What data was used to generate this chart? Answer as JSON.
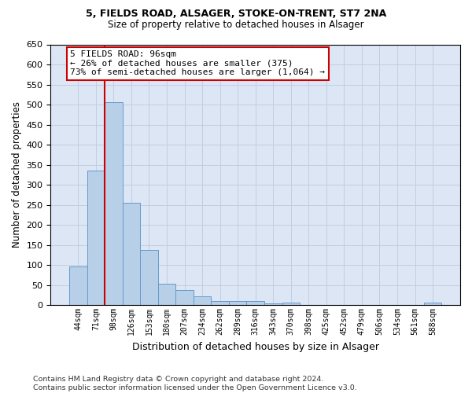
{
  "title_line1": "5, FIELDS ROAD, ALSAGER, STOKE-ON-TRENT, ST7 2NA",
  "title_line2": "Size of property relative to detached houses in Alsager",
  "xlabel": "Distribution of detached houses by size in Alsager",
  "ylabel": "Number of detached properties",
  "categories": [
    "44sqm",
    "71sqm",
    "98sqm",
    "126sqm",
    "153sqm",
    "180sqm",
    "207sqm",
    "234sqm",
    "262sqm",
    "289sqm",
    "316sqm",
    "343sqm",
    "370sqm",
    "398sqm",
    "425sqm",
    "452sqm",
    "479sqm",
    "506sqm",
    "534sqm",
    "561sqm",
    "588sqm"
  ],
  "values": [
    97,
    335,
    505,
    255,
    138,
    54,
    37,
    21,
    10,
    11,
    11,
    5,
    7,
    0,
    0,
    0,
    0,
    0,
    0,
    0,
    6
  ],
  "bar_color": "#b8cfe8",
  "bar_edge_color": "#6699cc",
  "vline_x": 1.5,
  "vline_color": "#cc0000",
  "ylim": [
    0,
    650
  ],
  "yticks": [
    0,
    50,
    100,
    150,
    200,
    250,
    300,
    350,
    400,
    450,
    500,
    550,
    600,
    650
  ],
  "annotation_text": "5 FIELDS ROAD: 96sqm\n← 26% of detached houses are smaller (375)\n73% of semi-detached houses are larger (1,064) →",
  "annotation_box_facecolor": "#ffffff",
  "annotation_box_edgecolor": "#cc0000",
  "footnote": "Contains HM Land Registry data © Crown copyright and database right 2024.\nContains public sector information licensed under the Open Government Licence v3.0.",
  "bg_color": "#ffffff",
  "plot_bg_color": "#dce6f5",
  "grid_color": "#c0cfe0"
}
